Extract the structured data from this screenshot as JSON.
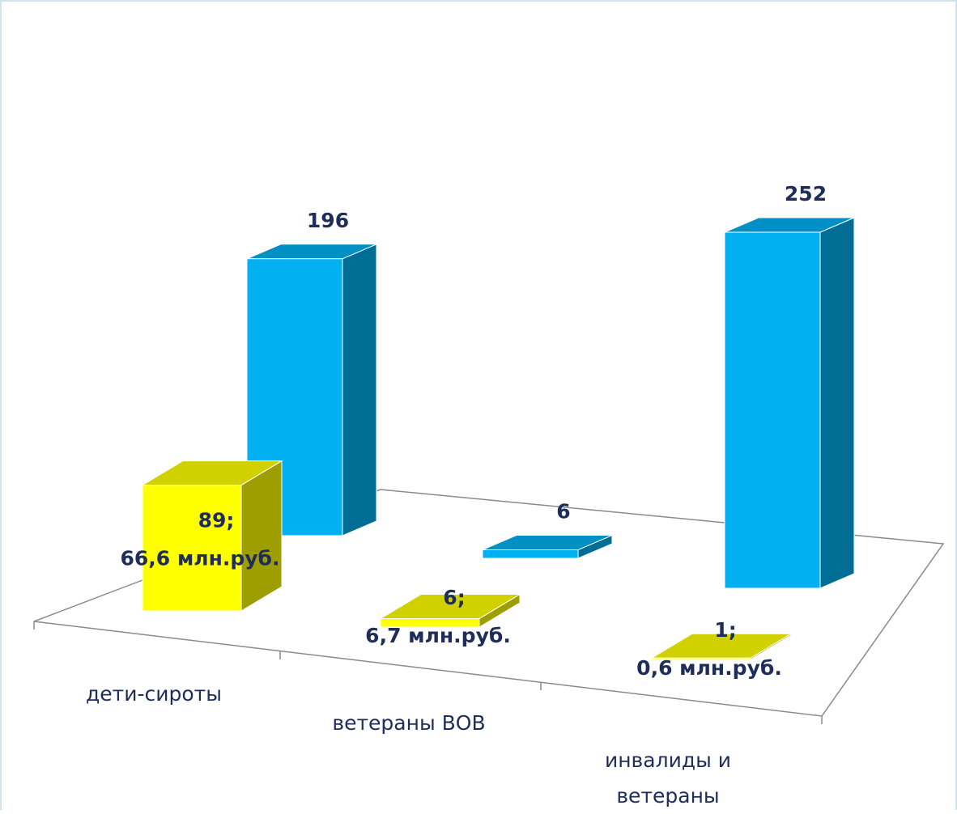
{
  "chart_data": {
    "type": "bar3d",
    "categories": [
      "дети-сироты",
      "ветераны ВОВ",
      "инвалиды и ветераны"
    ],
    "series": [
      {
        "color": "#ffff00",
        "values": [
          89,
          6,
          1
        ],
        "value_labels": [
          "89;",
          "6;",
          "1;"
        ],
        "amount_labels": [
          "66,6 млн.руб.",
          "6,7 млн.руб.",
          "0,6 млн.руб."
        ]
      },
      {
        "color": "#00b0f0",
        "values": [
          196,
          6,
          252
        ]
      }
    ]
  }
}
